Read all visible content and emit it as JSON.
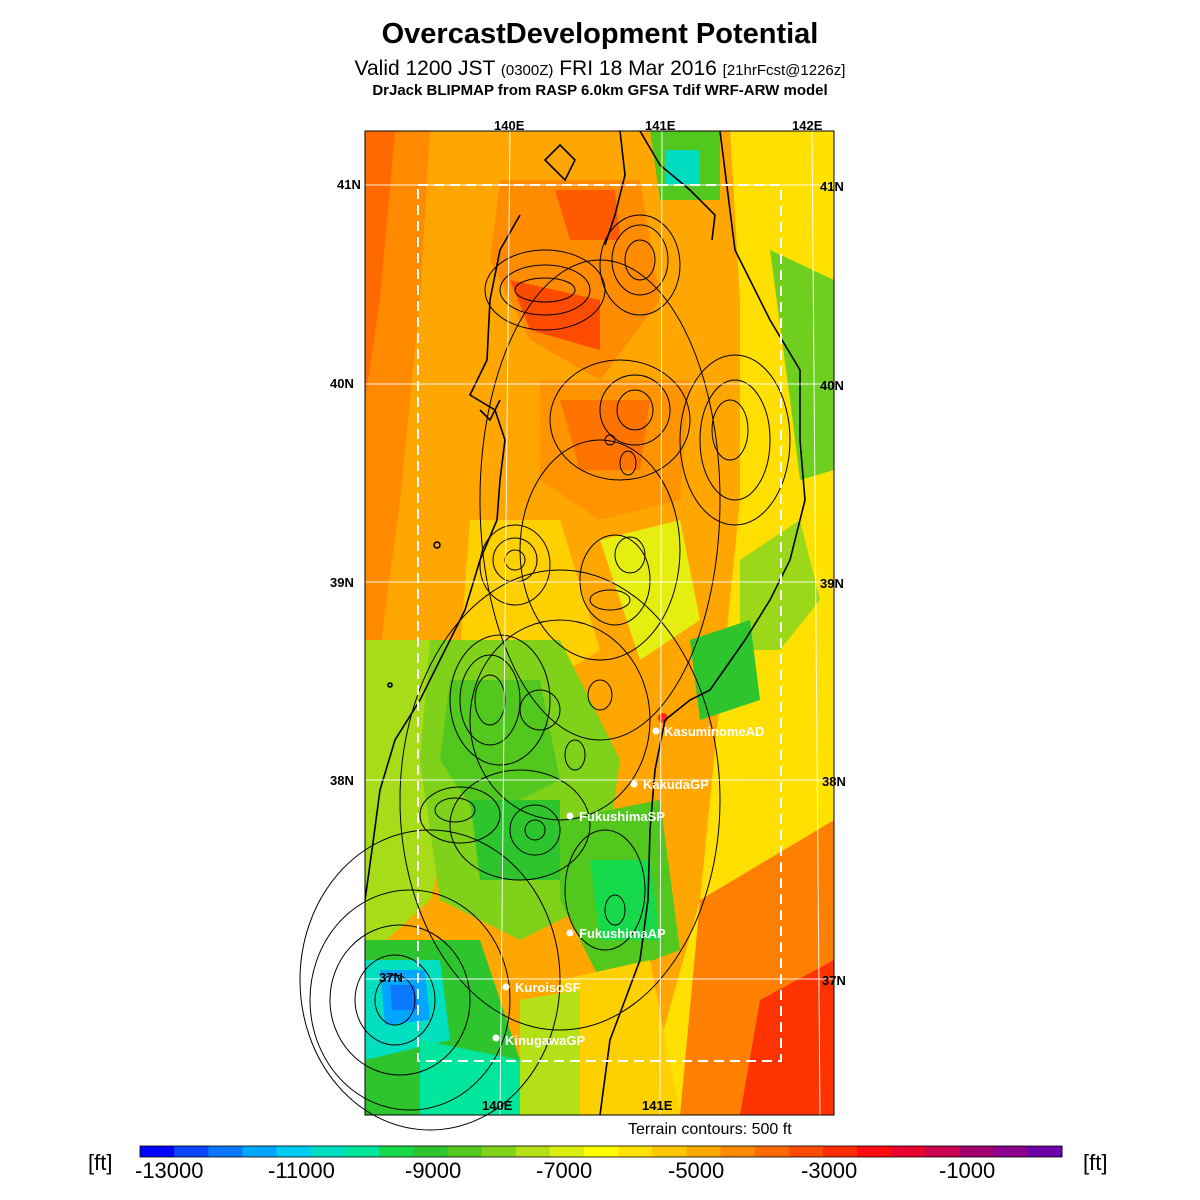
{
  "header": {
    "title": "OvercastDevelopment Potential",
    "valid_prefix": "Valid 1200 JST",
    "valid_zulu": "(0300Z)",
    "valid_date": "FRI 18 Mar 2016",
    "forecast": "[21hrFcst@1226z]",
    "model_line": "DrJack BLIPMAP from RASP 6.0km GFSA Tdif WRF-ARW model"
  },
  "map": {
    "longitude_labels": [
      "140E",
      "141E",
      "142E"
    ],
    "latitude_labels": [
      "41N",
      "40N",
      "39N",
      "38N",
      "37N"
    ],
    "stations": [
      {
        "name": "KasuminomeAD"
      },
      {
        "name": "KakudaGP"
      },
      {
        "name": "FukushimaSP"
      },
      {
        "name": "FukushimaAP"
      },
      {
        "name": "KuroisoSF"
      },
      {
        "name": "KinugawaGP"
      }
    ],
    "terrain_note": "Terrain contours: 500 ft"
  },
  "colorbar": {
    "unit": "[ft]",
    "tick_labels": [
      "-13000",
      "-11000",
      "-9000",
      "-7000",
      "-5000",
      "-3000",
      "-1000"
    ],
    "colors": [
      "#0000ff",
      "#0a44ff",
      "#0b78ff",
      "#00a6ff",
      "#00ccf2",
      "#00e0c0",
      "#00e69c",
      "#17d94c",
      "#2ec42e",
      "#52c71e",
      "#7fd11a",
      "#b3e016",
      "#dcee10",
      "#ffff00",
      "#ffe200",
      "#ffc800",
      "#ffaa00",
      "#ff8c00",
      "#ff6a00",
      "#ff4b00",
      "#ff2b00",
      "#ff0b10",
      "#e8002e",
      "#c8004e",
      "#a40070",
      "#8a008c",
      "#6c00a8"
    ]
  }
}
